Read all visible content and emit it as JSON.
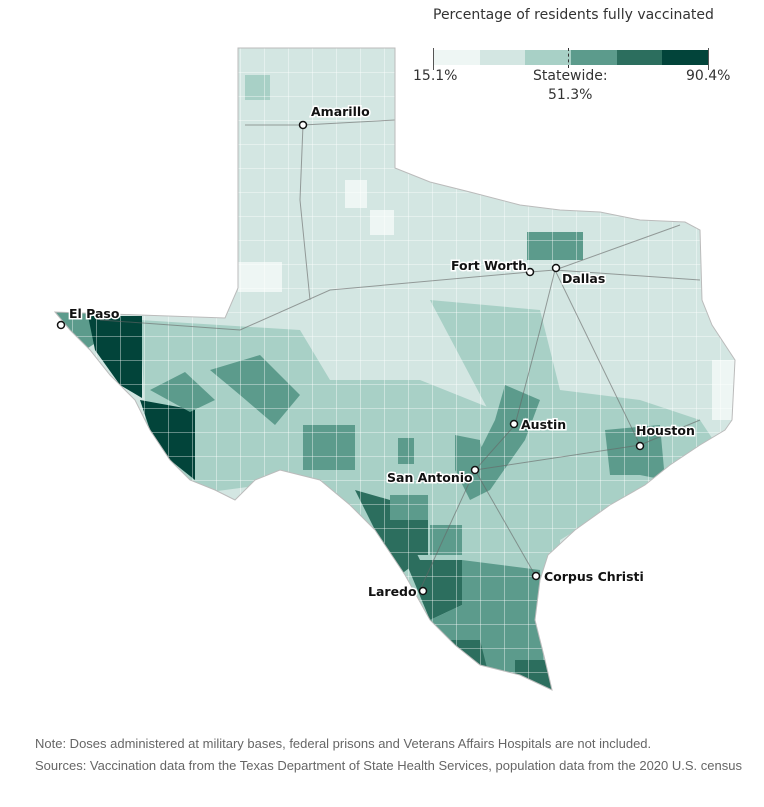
{
  "legend": {
    "title": "Percentage of residents fully vaccinated",
    "min_label": "15.1%",
    "max_label": "90.4%",
    "statewide_label": "Statewide:",
    "statewide_value": "51.3%",
    "bins": [
      "#eef6f4",
      "#d3e6e2",
      "#a8d0c6",
      "#5c9b8c",
      "#2c6e5e",
      "#02443a"
    ]
  },
  "cities": [
    {
      "name": "Amarillo"
    },
    {
      "name": "Fort Worth"
    },
    {
      "name": "Dallas"
    },
    {
      "name": "El Paso"
    },
    {
      "name": "Austin"
    },
    {
      "name": "Houston"
    },
    {
      "name": "San Antonio"
    },
    {
      "name": "Corpus Christi"
    },
    {
      "name": "Laredo"
    }
  ],
  "note": "Note: Doses administered at military bases, federal prisons and Veterans Affairs Hospitals are not included.",
  "sources": "Sources: Vaccination data from the Texas Department of State Health Services, population data from the 2020 U.S. census"
}
